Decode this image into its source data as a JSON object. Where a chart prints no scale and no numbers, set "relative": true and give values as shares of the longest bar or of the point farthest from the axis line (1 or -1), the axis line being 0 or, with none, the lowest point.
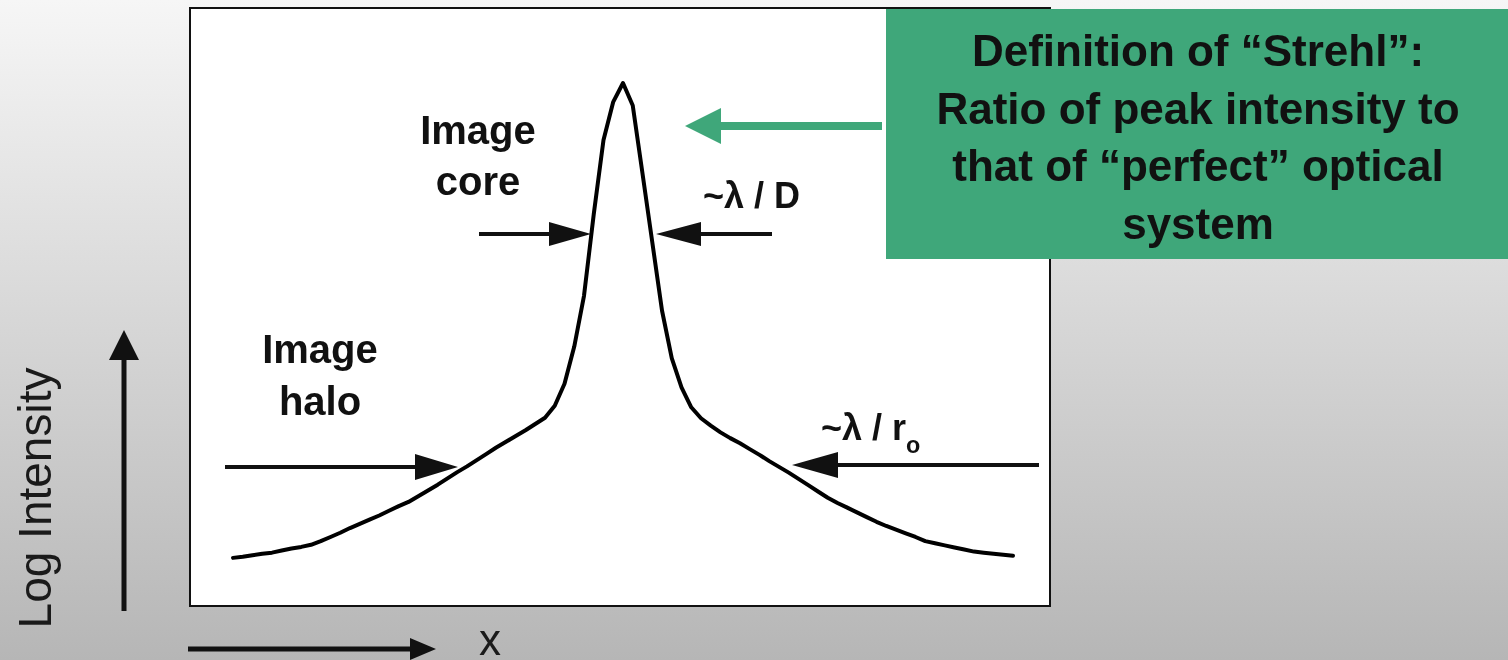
{
  "chart_data": {
    "type": "line",
    "relative": true,
    "xlabel": "x",
    "ylabel": "Log Intensity",
    "categories": [
      null,
      null,
      null,
      null,
      null,
      null,
      null,
      null,
      null,
      null,
      null,
      null,
      null,
      null,
      null,
      null,
      null,
      null,
      null,
      null,
      null,
      null,
      null,
      null,
      null,
      null,
      null,
      null,
      null,
      null,
      null,
      null,
      null,
      null,
      null,
      null,
      null,
      null,
      null,
      null,
      null,
      null,
      null,
      null,
      null,
      null,
      null,
      null,
      null,
      null,
      null,
      null,
      null,
      null,
      null,
      null,
      null,
      null,
      null,
      null,
      null,
      null,
      null,
      null,
      null,
      null,
      null,
      null,
      null,
      null,
      null,
      null,
      null,
      null,
      null,
      null,
      null,
      null,
      null,
      null,
      null
    ],
    "series": [
      {
        "color": "#000000",
        "values": [
          0.092,
          0.094,
          0.097,
          0.1,
          0.102,
          0.106,
          0.11,
          0.113,
          0.117,
          0.124,
          0.132,
          0.14,
          0.149,
          0.157,
          0.165,
          0.173,
          0.182,
          0.191,
          0.199,
          0.21,
          0.221,
          0.232,
          0.244,
          0.256,
          0.267,
          0.279,
          0.291,
          0.303,
          0.314,
          0.325,
          0.336,
          0.348,
          0.36,
          0.383,
          0.425,
          0.496,
          0.593,
          0.749,
          0.891,
          0.964,
          1.0,
          0.957,
          0.827,
          0.696,
          0.565,
          0.474,
          0.418,
          0.38,
          0.359,
          0.345,
          0.332,
          0.321,
          0.311,
          0.3,
          0.289,
          0.277,
          0.266,
          0.255,
          0.243,
          0.231,
          0.219,
          0.207,
          0.197,
          0.188,
          0.179,
          0.17,
          0.161,
          0.153,
          0.146,
          0.139,
          0.132,
          0.124,
          0.12,
          0.116,
          0.112,
          0.108,
          0.104,
          0.102,
          0.1,
          0.098,
          0.096
        ]
      }
    ],
    "annotations": [
      "Image core",
      "~λ / D",
      "Image halo",
      "~λ / r$_{o}$",
      "Definition of “Strehl”: Ratio of peak intensity to that of “perfect” optical system"
    ]
  }
}
